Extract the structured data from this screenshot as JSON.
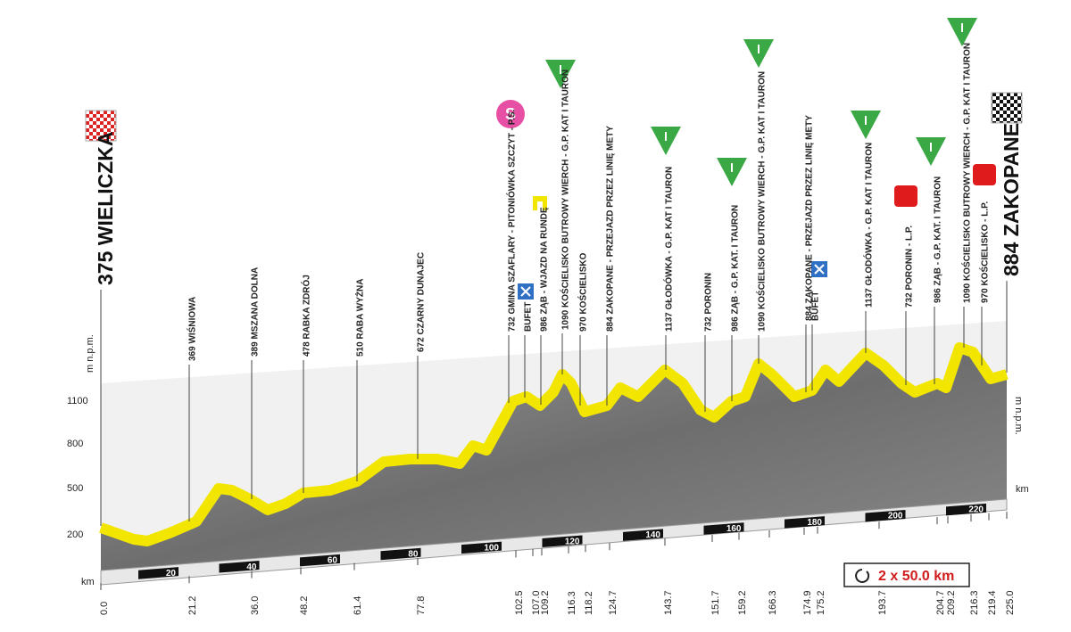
{
  "start": "375 WIELICZKA",
  "finish": "884 ZAKOPANE",
  "sprint_icon": "S",
  "waypoints": [
    "369 WIŚNIOWA",
    "389 MSZANA DOLNA",
    "478 RABKA ZDRÓJ",
    "510 RABA WYŻNA",
    "672 CZARNY DUNAJEC",
    "732 GMINA SZAFLARY - PITONIÓWKA SZCZYT - P.S.",
    "BUFET",
    "986 ZĄB - WJAZD NA RUNDĘ",
    "1090 KOŚCIELISKO BUTROWY WIERCH - G.P. KAT I TAURON",
    "970 KOŚCIELISKO",
    "884 ZAKOPANE - PRZEJAZD PRZEZ LINIĘ METY",
    "1137 GŁODÓWKA - G.P. KAT I TAURON",
    "732 PORONIN",
    "986 ZĄB - G.P. KAT. I TAURON",
    "1090 KOŚCIELISKO BUTROWY WIERCH - G.P. KAT I TAURON",
    "884 ZAKOPANE - PRZEJAZD PRZEZ LINIĘ METY",
    "BUFET",
    "1137 GŁODÓWKA - G.P. KAT I TAURON",
    "732 PORONIN - L.P.",
    "986 ZĄB - G.P. KAT. I TAURON",
    "1090 KOŚCIELISKO BUTROWY WIERCH - G.P. KAT I TAURON",
    "970 KOŚCIELISKO - L.P."
  ],
  "km_points": [
    "0.0",
    "21.2",
    "36.0",
    "48.2",
    "61.4",
    "77.8",
    "102.5",
    "107.0",
    "109.2",
    "116.3",
    "118.2",
    "124.7",
    "143.7",
    "151.7",
    "159.2",
    "166.3",
    "174.9",
    "175.2",
    "193.7",
    "204.7",
    "209.2",
    "216.3",
    "219.4",
    "225.0"
  ],
  "scale_labels": [
    "20",
    "40",
    "60",
    "80",
    "100",
    "120",
    "140",
    "160",
    "180",
    "200",
    "220"
  ],
  "elevation_labels": [
    "1100",
    "800",
    "500",
    "200"
  ],
  "elevation_unit_left": "m n.p.m.",
  "elevation_unit_right": "m n.p.m.",
  "km_unit_left": "km",
  "km_unit_right": "km",
  "laps": "2 x 50.0 km"
}
